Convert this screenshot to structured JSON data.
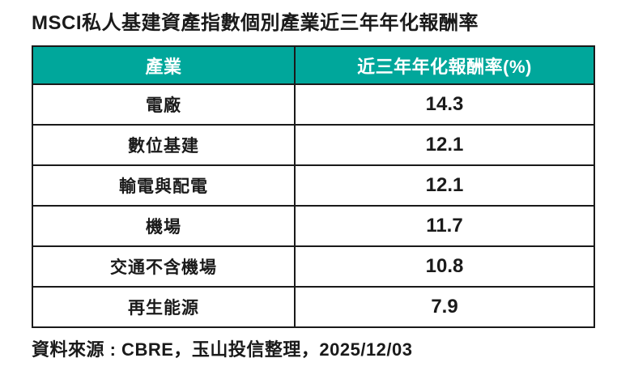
{
  "page": {
    "title": "MSCI私人基建資產指數個別產業近三年年化報酬率",
    "source_note": "資料來源 : CBRE，玉山投信整理，2025/12/03"
  },
  "colors": {
    "header_bg": "#00a79b",
    "header_text": "#ffffff",
    "border": "#1a1a1a",
    "body_text": "#1a1a1a",
    "page_bg": "#ffffff"
  },
  "table": {
    "headers": [
      {
        "label": "產業"
      },
      {
        "label": "近三年年化報酬率(%)"
      }
    ],
    "rows": [
      {
        "industry": "電廠",
        "return_pct": "14.3"
      },
      {
        "industry": "數位基建",
        "return_pct": "12.1"
      },
      {
        "industry": "輸電與配電",
        "return_pct": "12.1"
      },
      {
        "industry": "機場",
        "return_pct": "11.7"
      },
      {
        "industry": "交通不含機場",
        "return_pct": "10.8"
      },
      {
        "industry": "再生能源",
        "return_pct": "7.9"
      }
    ]
  },
  "chart_data": {
    "type": "table",
    "title": "MSCI私人基建資產指數個別產業近三年年化報酬率",
    "columns": [
      "產業",
      "近三年年化報酬率(%)"
    ],
    "rows": [
      [
        "電廠",
        14.3
      ],
      [
        "數位基建",
        12.1
      ],
      [
        "輸電與配電",
        12.1
      ],
      [
        "機場",
        11.7
      ],
      [
        "交通不含機場",
        10.8
      ],
      [
        "再生能源",
        7.9
      ]
    ],
    "source": "資料來源 : CBRE，玉山投信整理，2025/12/03"
  }
}
